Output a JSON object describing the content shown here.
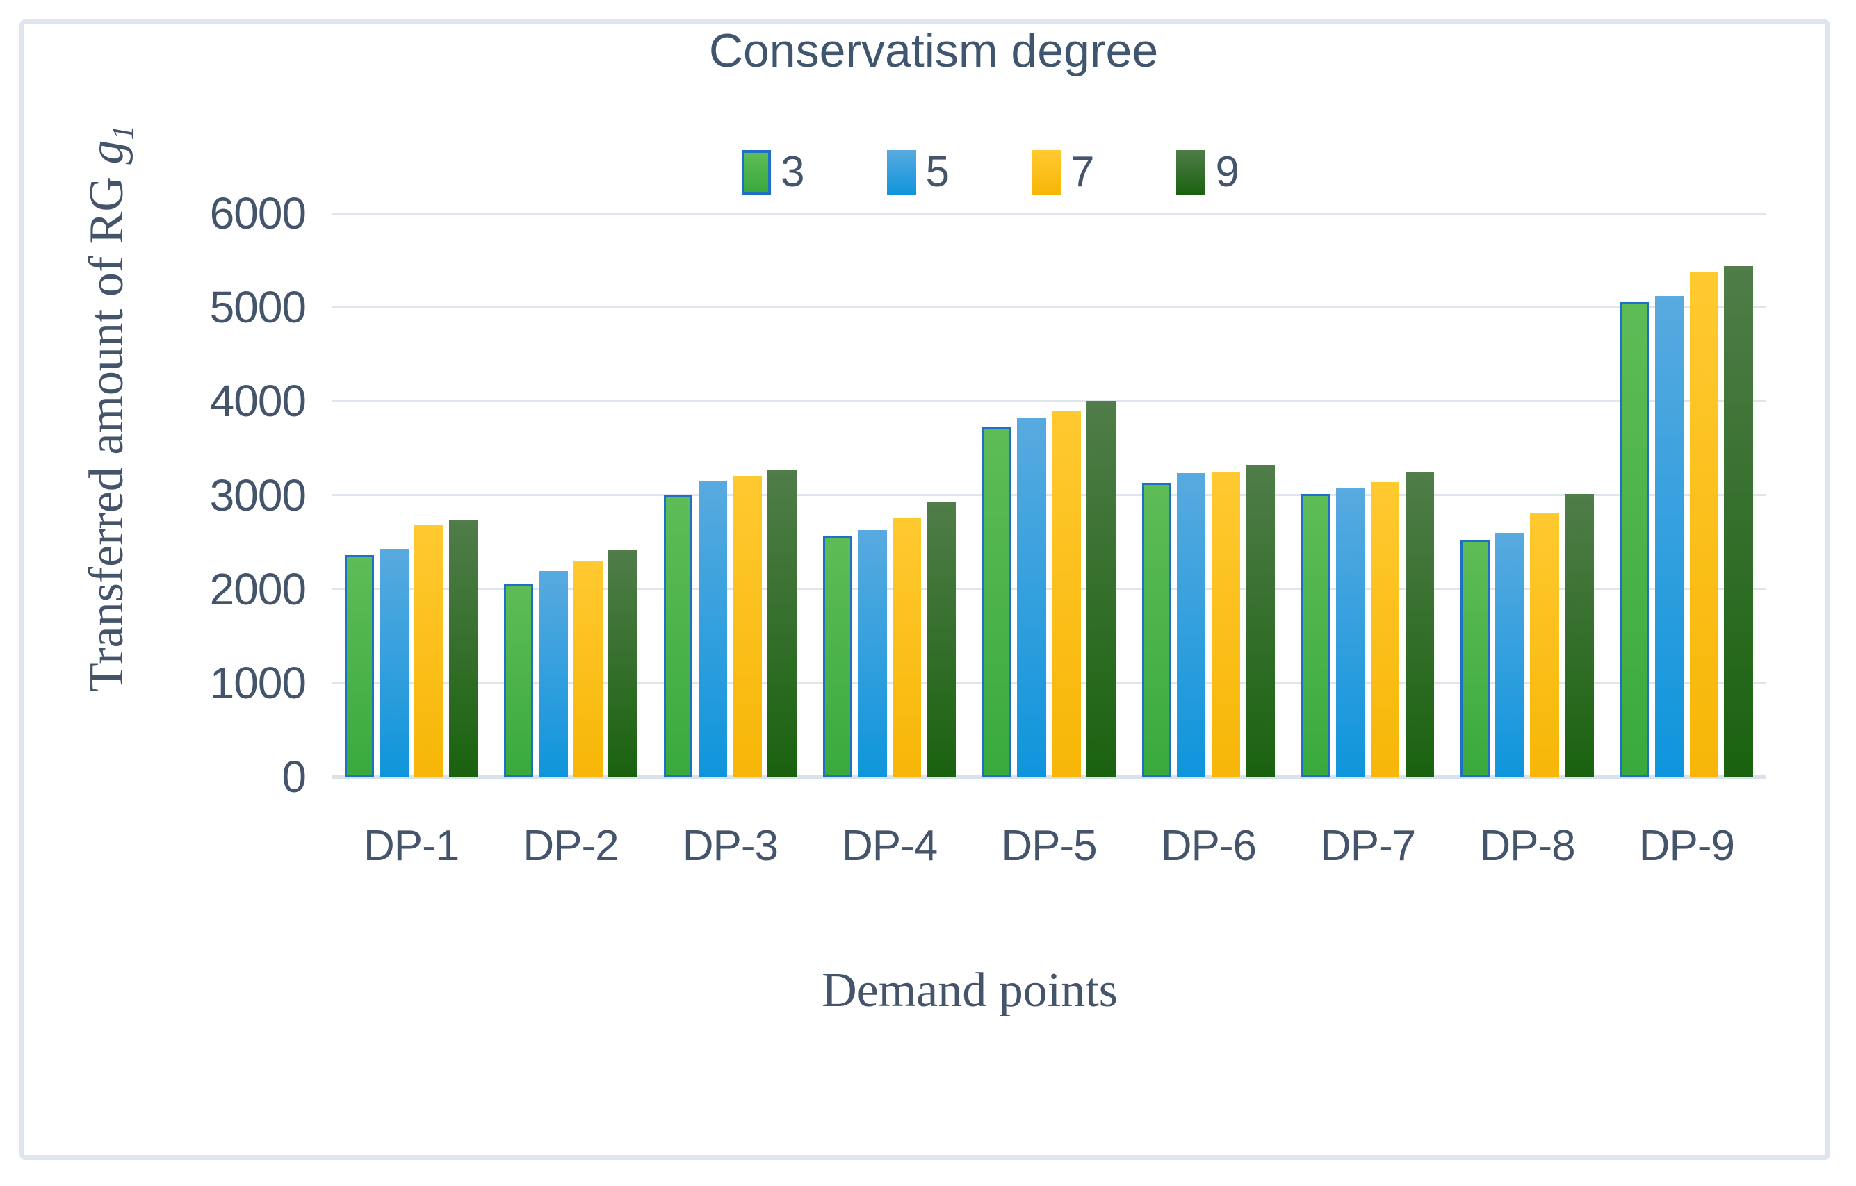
{
  "figure": {
    "border_color": "#dfe5ec",
    "background_color": "#ffffff",
    "text_color": "#44546a",
    "gridline_color": "#dfe5ec",
    "axis_line_color": "#d9e1ea"
  },
  "chart_data": {
    "type": "bar",
    "title": "Conservatism degree",
    "xlabel": "Demand points",
    "ylabel_prefix": "Transferred amount of RG ",
    "ylabel_symbol": "g",
    "ylabel_subscript": "1",
    "categories": [
      "DP-1",
      "DP-2",
      "DP-3",
      "DP-4",
      "DP-5",
      "DP-6",
      "DP-7",
      "DP-8",
      "DP-9"
    ],
    "series": [
      {
        "name": "3",
        "values": [
          2360,
          2050,
          3000,
          2570,
          3730,
          3130,
          3010,
          2520,
          5050
        ],
        "color_top": "#5ebc57",
        "color_bottom": "#39aa3d",
        "border_color": "#1f70c4"
      },
      {
        "name": "5",
        "values": [
          2430,
          2190,
          3150,
          2630,
          3820,
          3230,
          3080,
          2600,
          5120
        ],
        "color_top": "#58aadf",
        "color_bottom": "#0f95dc",
        "border_color": null
      },
      {
        "name": "7",
        "values": [
          2680,
          2290,
          3200,
          2750,
          3900,
          3250,
          3140,
          2810,
          5380
        ],
        "color_top": "#ffc930",
        "color_bottom": "#f7b607",
        "border_color": null
      },
      {
        "name": "9",
        "values": [
          2740,
          2420,
          3270,
          2920,
          4000,
          3320,
          3240,
          3010,
          5440
        ],
        "color_top": "#507d49",
        "color_bottom": "#1a620f",
        "border_color": null
      }
    ],
    "yticks": [
      0,
      1000,
      2000,
      3000,
      4000,
      5000,
      6000
    ],
    "ylim": [
      0,
      6000
    ],
    "grid": true,
    "legend_position": "top"
  }
}
